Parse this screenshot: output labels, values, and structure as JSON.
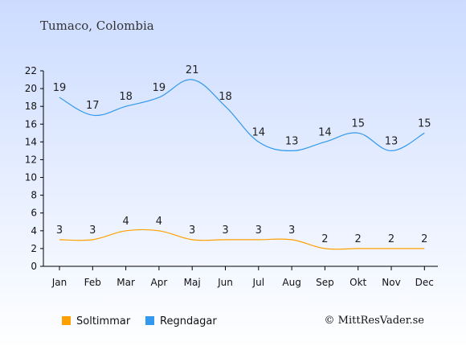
{
  "chart_data": {
    "type": "line",
    "title": "Tumaco, Colombia",
    "categories": [
      "Jan",
      "Feb",
      "Mar",
      "Apr",
      "Maj",
      "Jun",
      "Jul",
      "Aug",
      "Sep",
      "Okt",
      "Nov",
      "Dec"
    ],
    "ylim": [
      0,
      22
    ],
    "yticks": [
      "0",
      "2",
      "4",
      "6",
      "8",
      "10",
      "12",
      "14",
      "16",
      "18",
      "20",
      "22"
    ],
    "grid": false,
    "legend_position": "bottom-left",
    "series": [
      {
        "name": "Soltimmar",
        "color": "#FFA000",
        "values": [
          3,
          3,
          4,
          4,
          3,
          3,
          3,
          3,
          2,
          2,
          2,
          2
        ]
      },
      {
        "name": "Regndagar",
        "color": "#3399EE",
        "values": [
          19,
          17,
          18,
          19,
          21,
          18,
          14,
          13,
          14,
          15,
          13,
          15
        ]
      }
    ],
    "credit": "© MittResVader.se"
  }
}
